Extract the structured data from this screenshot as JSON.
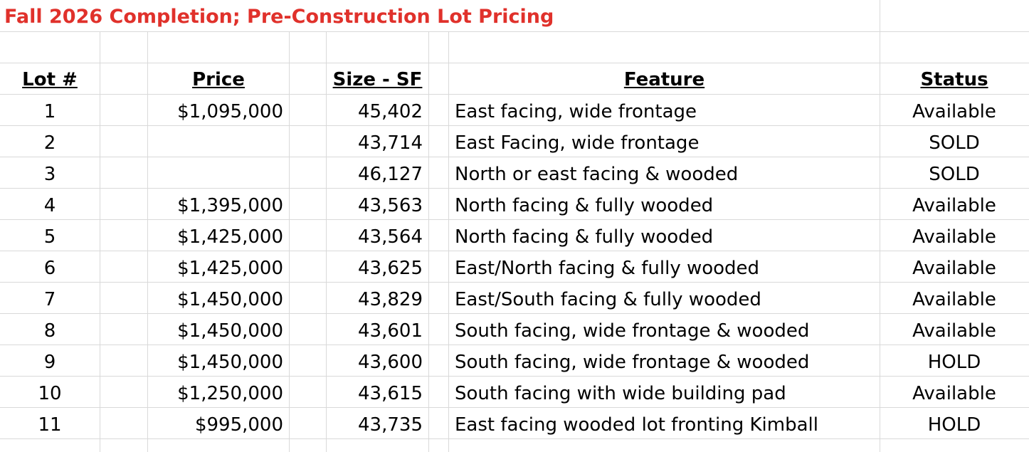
{
  "title": "Fall 2026 Completion; Pre-Construction Lot Pricing",
  "headers": {
    "lot": "Lot #",
    "price": "Price",
    "size": "Size - SF",
    "feature": "Feature",
    "status": "Status"
  },
  "rows": [
    {
      "lot": "1",
      "price": "$1,095,000",
      "size": "45,402",
      "feature": "East facing, wide frontage",
      "status": "Available"
    },
    {
      "lot": "2",
      "price": "",
      "size": "43,714",
      "feature": "East Facing, wide frontage",
      "status": "SOLD"
    },
    {
      "lot": "3",
      "price": "",
      "size": "46,127",
      "feature": "North or east facing & wooded",
      "status": "SOLD"
    },
    {
      "lot": "4",
      "price": "$1,395,000",
      "size": "43,563",
      "feature": "North facing & fully wooded",
      "status": "Available"
    },
    {
      "lot": "5",
      "price": "$1,425,000",
      "size": "43,564",
      "feature": "North facing & fully wooded",
      "status": "Available"
    },
    {
      "lot": "6",
      "price": "$1,425,000",
      "size": "43,625",
      "feature": "East/North facing & fully wooded",
      "status": "Available"
    },
    {
      "lot": "7",
      "price": "$1,450,000",
      "size": "43,829",
      "feature": "East/South facing & fully wooded",
      "status": "Available"
    },
    {
      "lot": "8",
      "price": "$1,450,000",
      "size": "43,601",
      "feature": "South facing, wide frontage & wooded",
      "status": "Available"
    },
    {
      "lot": "9",
      "price": "$1,450,000",
      "size": "43,600",
      "feature": "South facing, wide frontage & wooded",
      "status": "HOLD"
    },
    {
      "lot": "10",
      "price": "$1,250,000",
      "size": "43,615",
      "feature": "South facing with wide building pad",
      "status": "Available"
    },
    {
      "lot": "11",
      "price": "$995,000",
      "size": "43,735",
      "feature": "East facing wooded lot fronting Kimball",
      "status": "HOLD"
    }
  ],
  "colors": {
    "title": "#e0312b",
    "gridline": "#d9d9d9"
  }
}
